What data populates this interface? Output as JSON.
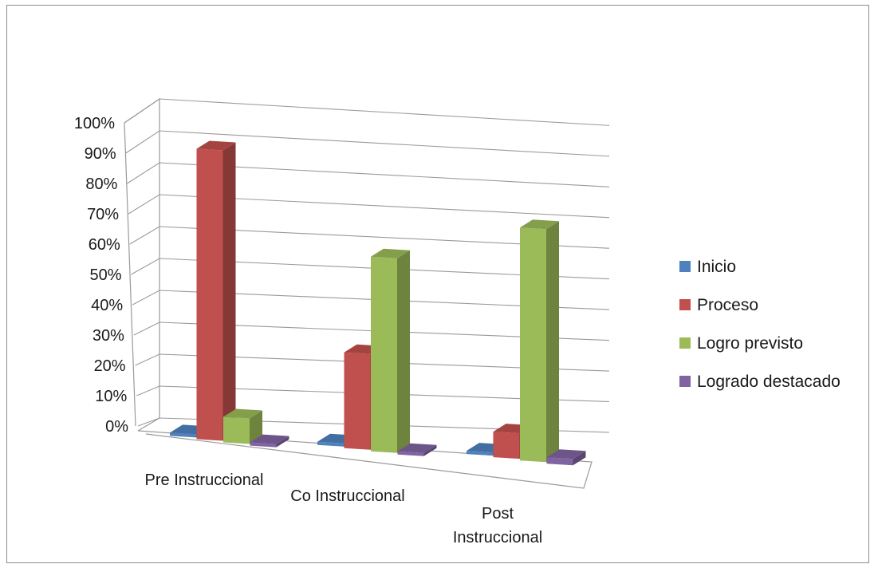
{
  "chart_data": {
    "type": "bar",
    "is_3d": true,
    "title": "",
    "xlabel": "",
    "ylabel": "",
    "ylim": [
      0,
      100
    ],
    "yticks": [
      "0%",
      "10%",
      "20%",
      "30%",
      "40%",
      "50%",
      "60%",
      "70%",
      "80%",
      "90%",
      "100%"
    ],
    "categories": [
      [
        "Pre Instruccional"
      ],
      [
        "Co Instruccional"
      ],
      [
        "Post",
        "Instruccional"
      ]
    ],
    "series": [
      {
        "name": "Inicio",
        "values": [
          0,
          0,
          0
        ],
        "color": "#4f81bd"
      },
      {
        "name": "Proceso",
        "values": [
          91,
          30,
          8
        ],
        "color": "#c0504d"
      },
      {
        "name": "Logro previsto",
        "values": [
          8,
          61,
          73
        ],
        "color": "#9bbb59"
      },
      {
        "name": "Logrado destacado",
        "values": [
          0,
          0,
          2
        ],
        "color": "#8064a2"
      }
    ],
    "legend_position": "right",
    "grid": true
  }
}
